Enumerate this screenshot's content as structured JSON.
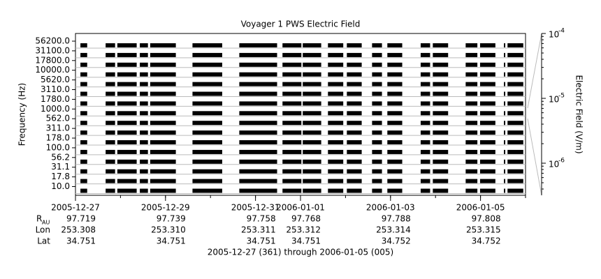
{
  "chart_data": {
    "type": "stack",
    "title": "Voyager 1 PWS Electric Field",
    "y_label": "Frequency (Hz)",
    "y2_label": "Electric Field (V/m)",
    "x_label": "2005-12-27 (361) through 2006-01-05 (005)",
    "categories": [
      "56200.0",
      "31100.0",
      "17800.0",
      "10000.0",
      "5620.0",
      "3110.0",
      "1780.0",
      "1000.0",
      "562.0",
      "311.0",
      "178.0",
      "100.0",
      "56.2",
      "31.1",
      "17.8",
      "10.0"
    ],
    "color": "#000000",
    "xlim": [
      0,
      10
    ],
    "xticks": [
      {
        "value": 0,
        "label": "2005-12-27"
      },
      {
        "value": 2,
        "label": "2005-12-29"
      },
      {
        "value": 4,
        "label": "2005-12-31"
      },
      {
        "value": 5,
        "label": "2006-01-01"
      },
      {
        "value": 7,
        "label": "2006-01-03"
      },
      {
        "value": 9,
        "label": "2006-01-05"
      }
    ],
    "segments": [
      [
        0.11,
        0.26
      ],
      [
        0.67,
        0.88
      ],
      [
        0.93,
        1.36
      ],
      [
        1.43,
        1.61
      ],
      [
        1.66,
        2.23
      ],
      [
        2.6,
        3.26
      ],
      [
        3.64,
        4.48
      ],
      [
        4.6,
        5.02
      ],
      [
        5.05,
        5.46
      ],
      [
        5.61,
        5.95
      ],
      [
        6.03,
        6.36
      ],
      [
        6.59,
        6.81
      ],
      [
        6.93,
        7.26
      ],
      [
        7.67,
        7.88
      ],
      [
        7.94,
        8.28
      ],
      [
        8.67,
        8.93
      ],
      [
        8.99,
        9.33
      ],
      [
        9.52,
        9.55
      ],
      [
        9.6,
        9.95
      ]
    ],
    "y2_log": true,
    "y2lim": [
      3.2e-07,
      0.0001
    ],
    "y2ticks": [
      {
        "value": 0.0001,
        "label": "10",
        "exponent": "-4"
      },
      {
        "value": 1e-05,
        "label": "10",
        "exponent": "-5"
      },
      {
        "value": 1e-06,
        "label": "10",
        "exponent": "-6"
      }
    ],
    "ephemeris": [
      {
        "label": "R",
        "subscript": "AU",
        "values": [
          "97.719",
          "97.739",
          "97.758",
          "97.768",
          "97.788",
          "97.808"
        ]
      },
      {
        "label": "Lon",
        "values": [
          "253.308",
          "253.310",
          "253.311",
          "253.312",
          "253.314",
          "253.315"
        ]
      },
      {
        "label": "Lat",
        "values": [
          "34.751",
          "34.751",
          "34.751",
          "34.751",
          "34.752",
          "34.752"
        ]
      }
    ]
  }
}
